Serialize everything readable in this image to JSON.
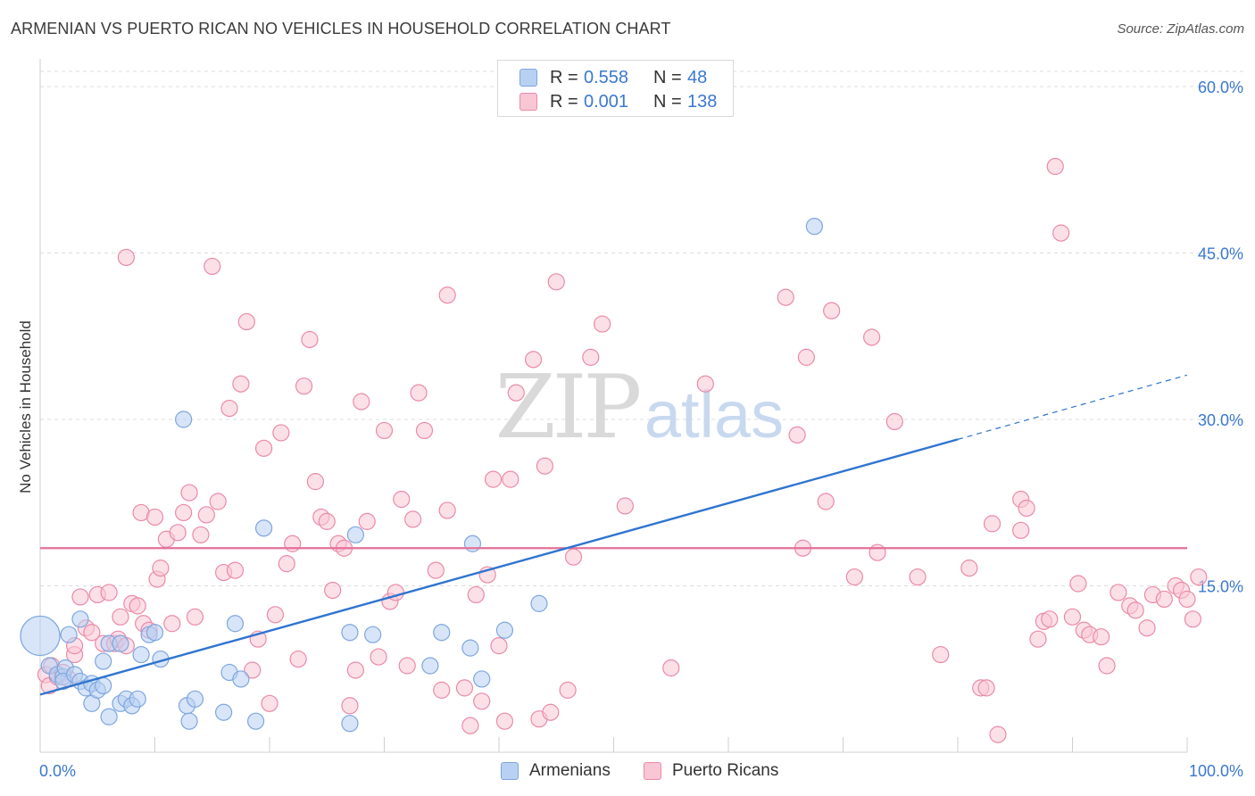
{
  "title": "ARMENIAN VS PUERTO RICAN NO VEHICLES IN HOUSEHOLD CORRELATION CHART",
  "source": "Source: ZipAtlas.com",
  "watermark": {
    "zip": "ZIP",
    "atlas": "atlas"
  },
  "legend_box": {
    "rows": [
      {
        "r_label": "R =",
        "r_value": "0.558",
        "n_label": "N =",
        "n_value": "48",
        "color": "#b8d0f2",
        "stroke": "#7ea6de"
      },
      {
        "r_label": "R =",
        "r_value": "0.001",
        "n_label": "N =",
        "n_value": "138",
        "color": "#f9c6d5",
        "stroke": "#ea8aa8"
      }
    ]
  },
  "bottom_legend": [
    {
      "label": "Armenians",
      "color": "#b8d0f2",
      "stroke": "#7ea6de"
    },
    {
      "label": "Puerto Ricans",
      "color": "#f9c6d5",
      "stroke": "#ea8aa8"
    }
  ],
  "chart_data": {
    "type": "scatter",
    "title": "ARMENIAN VS PUERTO RICAN NO VEHICLES IN HOUSEHOLD CORRELATION CHART",
    "xlabel": "",
    "ylabel": "No Vehicles in Household",
    "xlim": [
      0,
      100
    ],
    "ylim": [
      0,
      62
    ],
    "x_tick_labels": [
      "0.0%",
      "100.0%"
    ],
    "y_ticks": [
      15,
      30,
      45,
      60
    ],
    "y_tick_labels": [
      "15.0%",
      "30.0%",
      "45.0%",
      "60.0%"
    ],
    "grid": true,
    "legend_position": "top-center",
    "series": [
      {
        "name": "Armenians",
        "color": "#b8d0f2",
        "stroke": "#7ea6de",
        "trend": {
          "x": [
            0,
            80
          ],
          "y": [
            5.2,
            28.2
          ],
          "dashed_to": [
            100,
            34.0
          ],
          "color": "#2f74d0"
        },
        "points": [
          [
            0,
            10.5,
            22
          ],
          [
            0.8,
            7.8,
            9
          ],
          [
            1.5,
            7.0,
            9
          ],
          [
            2.0,
            6.8,
            9
          ],
          [
            2.2,
            7.6,
            9
          ],
          [
            2.0,
            6.4,
            9
          ],
          [
            2.5,
            10.6,
            9
          ],
          [
            3.0,
            7.0,
            9
          ],
          [
            3.5,
            6.4,
            9
          ],
          [
            3.5,
            12.0,
            9
          ],
          [
            4.0,
            5.8,
            9
          ],
          [
            4.5,
            4.4,
            9
          ],
          [
            4.5,
            6.2,
            9
          ],
          [
            5.0,
            5.6,
            9
          ],
          [
            5.5,
            6.0,
            9
          ],
          [
            5.5,
            8.2,
            9
          ],
          [
            6.0,
            9.8,
            9
          ],
          [
            6.0,
            3.2,
            9
          ],
          [
            7.0,
            9.8,
            9
          ],
          [
            7.0,
            4.4,
            9
          ],
          [
            7.5,
            4.8,
            9
          ],
          [
            8.0,
            4.2,
            9
          ],
          [
            8.5,
            4.8,
            9
          ],
          [
            8.8,
            8.8,
            9
          ],
          [
            9.5,
            10.6,
            9
          ],
          [
            10.0,
            10.8,
            9
          ],
          [
            10.5,
            8.4,
            9
          ],
          [
            12.5,
            30.0,
            9
          ],
          [
            12.8,
            4.2,
            9
          ],
          [
            13.0,
            2.8,
            9
          ],
          [
            13.5,
            4.8,
            9
          ],
          [
            16.0,
            3.6,
            9
          ],
          [
            16.5,
            7.2,
            9
          ],
          [
            17.0,
            11.6,
            9
          ],
          [
            17.5,
            6.6,
            9
          ],
          [
            18.8,
            2.8,
            9
          ],
          [
            19.5,
            20.2,
            9
          ],
          [
            27.0,
            10.8,
            9
          ],
          [
            27.0,
            2.6,
            9
          ],
          [
            27.5,
            19.6,
            9
          ],
          [
            29.0,
            10.6,
            9
          ],
          [
            34.0,
            7.8,
            9
          ],
          [
            35.0,
            10.8,
            9
          ],
          [
            37.5,
            9.4,
            9
          ],
          [
            37.7,
            18.8,
            9
          ],
          [
            38.5,
            6.6,
            9
          ],
          [
            40.5,
            11.0,
            9
          ],
          [
            43.5,
            13.4,
            9
          ],
          [
            67.5,
            47.4,
            9
          ]
        ]
      },
      {
        "name": "Puerto Ricans",
        "color": "#f9c6d5",
        "stroke": "#ea8aa8",
        "trend": {
          "x": [
            0,
            100
          ],
          "y": [
            18.4,
            18.4
          ],
          "color": "#e4709a"
        },
        "points": [
          [
            0.5,
            7.0
          ],
          [
            0.8,
            6.0
          ],
          [
            1.0,
            7.8
          ],
          [
            1.5,
            6.8
          ],
          [
            2.0,
            7.2
          ],
          [
            2.5,
            6.6
          ],
          [
            3.0,
            8.8
          ],
          [
            3.0,
            9.6
          ],
          [
            3.5,
            14.0
          ],
          [
            4.0,
            11.2
          ],
          [
            4.5,
            10.8
          ],
          [
            5.0,
            14.2
          ],
          [
            5.5,
            9.8
          ],
          [
            6.0,
            14.4
          ],
          [
            6.5,
            9.8
          ],
          [
            6.8,
            10.2
          ],
          [
            7.0,
            12.2
          ],
          [
            7.5,
            44.6
          ],
          [
            7.5,
            9.6
          ],
          [
            8.0,
            13.4
          ],
          [
            8.5,
            13.2
          ],
          [
            8.8,
            21.6
          ],
          [
            9.0,
            11.6
          ],
          [
            9.5,
            11.0
          ],
          [
            10.0,
            21.2
          ],
          [
            10.2,
            15.6
          ],
          [
            10.5,
            16.6
          ],
          [
            11.0,
            19.2
          ],
          [
            11.5,
            11.6
          ],
          [
            12.0,
            19.8
          ],
          [
            12.5,
            21.6
          ],
          [
            13.0,
            23.4
          ],
          [
            13.5,
            12.2
          ],
          [
            14.0,
            19.6
          ],
          [
            14.5,
            21.4
          ],
          [
            15.0,
            43.8
          ],
          [
            15.5,
            22.6
          ],
          [
            16.0,
            16.2
          ],
          [
            16.5,
            31.0
          ],
          [
            17.0,
            16.4
          ],
          [
            17.5,
            33.2
          ],
          [
            18.0,
            38.8
          ],
          [
            18.5,
            7.4
          ],
          [
            19.0,
            10.2
          ],
          [
            19.5,
            27.4
          ],
          [
            20.0,
            4.4
          ],
          [
            20.5,
            12.4
          ],
          [
            21.0,
            28.8
          ],
          [
            21.5,
            17.0
          ],
          [
            22.0,
            18.8
          ],
          [
            22.5,
            8.4
          ],
          [
            23.0,
            33.0
          ],
          [
            23.5,
            37.2
          ],
          [
            24.0,
            24.4
          ],
          [
            24.5,
            21.2
          ],
          [
            25.0,
            20.8
          ],
          [
            25.5,
            14.6
          ],
          [
            26.0,
            18.8
          ],
          [
            26.5,
            18.4
          ],
          [
            27.0,
            4.2
          ],
          [
            27.5,
            7.4
          ],
          [
            28.0,
            31.6
          ],
          [
            28.5,
            20.8
          ],
          [
            29.5,
            8.6
          ],
          [
            30.0,
            29.0
          ],
          [
            30.5,
            13.6
          ],
          [
            31.0,
            14.4
          ],
          [
            31.5,
            22.8
          ],
          [
            32.0,
            7.8
          ],
          [
            32.5,
            21.0
          ],
          [
            33.0,
            32.4
          ],
          [
            33.5,
            29.0
          ],
          [
            34.5,
            16.4
          ],
          [
            35.0,
            5.6
          ],
          [
            35.5,
            21.8
          ],
          [
            35.5,
            41.2
          ],
          [
            37.0,
            5.8
          ],
          [
            37.5,
            2.4
          ],
          [
            38.0,
            14.2
          ],
          [
            38.5,
            4.6
          ],
          [
            39.0,
            16.0
          ],
          [
            39.5,
            24.6
          ],
          [
            40.0,
            9.6
          ],
          [
            40.5,
            2.8
          ],
          [
            41.0,
            24.6
          ],
          [
            41.5,
            32.4
          ],
          [
            43.5,
            3.0
          ],
          [
            43.0,
            35.4
          ],
          [
            44.0,
            25.8
          ],
          [
            44.5,
            3.6
          ],
          [
            45.0,
            42.4
          ],
          [
            46.0,
            5.6
          ],
          [
            46.5,
            17.6
          ],
          [
            48.0,
            35.6
          ],
          [
            49.0,
            38.6
          ],
          [
            51.0,
            22.2
          ],
          [
            55.0,
            7.6
          ],
          [
            58.0,
            33.2
          ],
          [
            65.0,
            41.0
          ],
          [
            66.0,
            28.6
          ],
          [
            66.5,
            18.4
          ],
          [
            66.8,
            35.6
          ],
          [
            68.5,
            22.6
          ],
          [
            69.0,
            39.8
          ],
          [
            71.0,
            15.8
          ],
          [
            72.5,
            37.4
          ],
          [
            73.0,
            18.0
          ],
          [
            74.5,
            29.8
          ],
          [
            76.5,
            15.8
          ],
          [
            78.5,
            8.8
          ],
          [
            81.0,
            16.6
          ],
          [
            82.0,
            5.8
          ],
          [
            82.5,
            5.8
          ],
          [
            83.0,
            20.6
          ],
          [
            83.5,
            1.6
          ],
          [
            85.5,
            22.8
          ],
          [
            85.5,
            20.0
          ],
          [
            86.0,
            22.0
          ],
          [
            87.0,
            10.2
          ],
          [
            87.5,
            11.8
          ],
          [
            88.0,
            12.0
          ],
          [
            88.5,
            52.8
          ],
          [
            89.0,
            46.8
          ],
          [
            90.0,
            12.2
          ],
          [
            90.5,
            15.2
          ],
          [
            91.0,
            11.0
          ],
          [
            91.5,
            10.6
          ],
          [
            92.5,
            10.4
          ],
          [
            93.0,
            7.8
          ],
          [
            94.0,
            14.4
          ],
          [
            95.0,
            13.2
          ],
          [
            95.5,
            12.8
          ],
          [
            96.5,
            11.2
          ],
          [
            97.0,
            14.2
          ],
          [
            98.0,
            13.8
          ],
          [
            99.0,
            15.0
          ],
          [
            99.5,
            14.6
          ],
          [
            100.0,
            13.8
          ],
          [
            100.5,
            12.0
          ],
          [
            101.0,
            15.8
          ]
        ]
      }
    ]
  }
}
